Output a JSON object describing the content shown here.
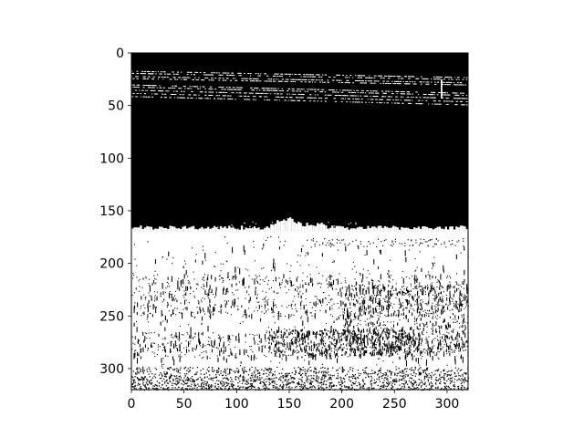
{
  "chart_data": {
    "type": "heatmap",
    "subtype": "binary-image",
    "colormap": "gray",
    "colors": {
      "foreground": "#ffffff",
      "background": "#000000",
      "axis": "#000000"
    },
    "image_size": [
      320,
      320
    ],
    "xlim": [
      0,
      320
    ],
    "ylim": [
      320,
      0
    ],
    "y_inverted": true,
    "x_ticks": [
      0,
      50,
      100,
      150,
      200,
      250,
      300
    ],
    "y_ticks": [
      0,
      50,
      100,
      150,
      200,
      250,
      300
    ],
    "x_tick_labels": [
      "0",
      "50",
      "100",
      "150",
      "200",
      "250",
      "300"
    ],
    "y_tick_labels": [
      "0",
      "50",
      "100",
      "150",
      "200",
      "250",
      "300"
    ],
    "title": "",
    "xlabel": "",
    "ylabel": "",
    "grid": false,
    "legend": "none",
    "regions": [
      {
        "name": "dark-top",
        "value": 0,
        "row_range": [
          0,
          170
        ]
      },
      {
        "name": "white-stripes",
        "value": 1,
        "row_range": [
          15,
          45
        ]
      },
      {
        "name": "bright-bottom",
        "value": 1,
        "row_range": [
          170,
          320
        ]
      },
      {
        "name": "noisy-bottom-edge",
        "value": 0,
        "row_range": [
          298,
          320
        ]
      }
    ]
  }
}
